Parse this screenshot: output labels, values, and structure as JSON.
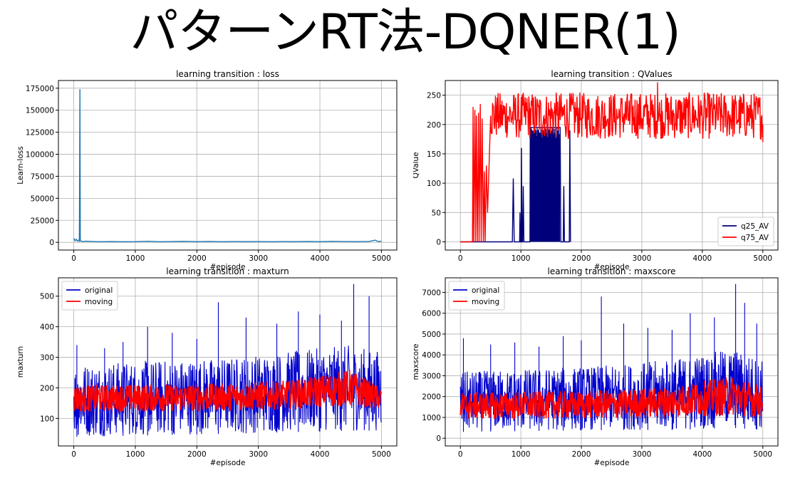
{
  "page": {
    "title": "パターンRT法-DQNER(1)"
  },
  "colors": {
    "blue": "#0000cc",
    "red": "#ff0000",
    "navy": "#00007a",
    "loss_line": "#1f77b4",
    "grid": "#b0b0b0"
  },
  "chart_data": [
    {
      "id": "loss",
      "type": "line",
      "title": "learning transition : loss",
      "xlabel": "#episode",
      "ylabel": "Learn-loss",
      "xlim": [
        -250,
        5250
      ],
      "ylim": [
        -8750,
        183750
      ],
      "xticks": [
        0,
        1000,
        2000,
        3000,
        4000,
        5000
      ],
      "yticks": [
        0,
        25000,
        50000,
        75000,
        100000,
        125000,
        150000,
        175000
      ],
      "grid": true,
      "legend": null,
      "series": [
        {
          "color": "#1f77b4",
          "points": [
            [
              0,
              4500
            ],
            [
              20,
              1800
            ],
            [
              40,
              3500
            ],
            [
              60,
              1200
            ],
            [
              80,
              2600
            ],
            [
              90,
              1500
            ],
            [
              100,
              174000
            ],
            [
              105,
              4000
            ],
            [
              110,
              1500
            ],
            [
              150,
              900
            ],
            [
              200,
              1300
            ],
            [
              400,
              700
            ],
            [
              600,
              900
            ],
            [
              800,
              700
            ],
            [
              1000,
              800
            ],
            [
              1200,
              1200
            ],
            [
              1400,
              700
            ],
            [
              1600,
              900
            ],
            [
              1800,
              1100
            ],
            [
              2000,
              800
            ],
            [
              2200,
              1000
            ],
            [
              2400,
              700
            ],
            [
              2600,
              900
            ],
            [
              2800,
              800
            ],
            [
              3000,
              900
            ],
            [
              3200,
              700
            ],
            [
              3400,
              900
            ],
            [
              3600,
              800
            ],
            [
              3800,
              1000
            ],
            [
              4000,
              800
            ],
            [
              4200,
              1100
            ],
            [
              4400,
              900
            ],
            [
              4600,
              800
            ],
            [
              4800,
              1000
            ],
            [
              4900,
              2500
            ],
            [
              4950,
              800
            ],
            [
              5000,
              1300
            ]
          ]
        }
      ]
    },
    {
      "id": "qvalues",
      "type": "line",
      "title": "learning transition : QValues",
      "xlabel": "#episode",
      "ylabel": "QValue",
      "xlim": [
        -250,
        5250
      ],
      "ylim": [
        -14,
        275
      ],
      "xticks": [
        0,
        1000,
        2000,
        3000,
        4000,
        5000
      ],
      "yticks": [
        0,
        50,
        100,
        150,
        200,
        250
      ],
      "grid": true,
      "legend": "lower-right",
      "series": [
        {
          "name": "q25_AV",
          "color": "#00007a",
          "points": [
            [
              0,
              0
            ],
            [
              860,
              0
            ],
            [
              875,
              108
            ],
            [
              890,
              0
            ],
            [
              980,
              0
            ],
            [
              985,
              50
            ],
            [
              995,
              0
            ],
            [
              1005,
              0
            ],
            [
              1010,
              160
            ],
            [
              1020,
              0
            ],
            [
              1030,
              0
            ],
            [
              1040,
              95
            ],
            [
              1050,
              0
            ],
            [
              1150,
              0
            ],
            [
              1155,
              195
            ],
            [
              1650,
              195
            ],
            [
              1660,
              0
            ],
            [
              1700,
              0
            ],
            [
              1710,
              95
            ],
            [
              1720,
              0
            ],
            [
              1800,
              0
            ],
            [
              1810,
              190
            ],
            [
              1820,
              0
            ]
          ],
          "dense_band": [
            1160,
            1640,
            0,
            195
          ]
        },
        {
          "name": "q75_AV",
          "color": "#ff0000",
          "points": [
            [
              0,
              0
            ],
            [
              200,
              0
            ],
            [
              210,
              230
            ],
            [
              220,
              0
            ],
            [
              240,
              225
            ],
            [
              250,
              0
            ],
            [
              265,
              215
            ],
            [
              280,
              0
            ],
            [
              300,
              220
            ],
            [
              310,
              0
            ],
            [
              330,
              235
            ],
            [
              345,
              0
            ],
            [
              360,
              210
            ],
            [
              380,
              0
            ],
            [
              395,
              120
            ],
            [
              410,
              0
            ],
            [
              430,
              130
            ],
            [
              450,
              50
            ],
            [
              500,
              215
            ],
            [
              600,
              230
            ],
            [
              800,
              210
            ],
            [
              1000,
              220
            ],
            [
              1100,
              245
            ],
            [
              1200,
              200
            ],
            [
              1400,
              210
            ],
            [
              1600,
              215
            ],
            [
              1800,
              205
            ],
            [
              2000,
              210
            ],
            [
              2200,
              195
            ],
            [
              2400,
              215
            ],
            [
              2600,
              210
            ],
            [
              2800,
              200
            ],
            [
              3000,
              210
            ],
            [
              3200,
              205
            ],
            [
              3260,
              272
            ],
            [
              3300,
              205
            ],
            [
              3600,
              210
            ],
            [
              4000,
              205
            ],
            [
              4400,
              215
            ],
            [
              4800,
              210
            ],
            [
              5000,
              200
            ],
            [
              5000,
              170
            ]
          ],
          "noise": [
            175,
            255
          ]
        }
      ]
    },
    {
      "id": "maxturn",
      "type": "line",
      "title": "learning transition : maxturn",
      "xlabel": "#episode",
      "ylabel": "maxturn",
      "xlim": [
        -250,
        5250
      ],
      "ylim": [
        10,
        560
      ],
      "xticks": [
        0,
        1000,
        2000,
        3000,
        4000,
        5000
      ],
      "yticks": [
        100,
        200,
        300,
        400,
        500
      ],
      "grid": true,
      "legend": "upper-left",
      "series": [
        {
          "name": "original",
          "color": "#0000cc",
          "band": [
            [
              0,
              40,
              280
            ],
            [
              2500,
              50,
              300
            ],
            [
              3500,
              55,
              320
            ],
            [
              4500,
              60,
              340
            ],
            [
              5000,
              60,
              320
            ]
          ],
          "spikes": [
            [
              50,
              340
            ],
            [
              500,
              330
            ],
            [
              800,
              350
            ],
            [
              1200,
              400
            ],
            [
              1600,
              380
            ],
            [
              2000,
              360
            ],
            [
              2350,
              480
            ],
            [
              2800,
              430
            ],
            [
              3300,
              410
            ],
            [
              3650,
              450
            ],
            [
              4000,
              440
            ],
            [
              4350,
              420
            ],
            [
              4550,
              540
            ],
            [
              4800,
              500
            ]
          ]
        },
        {
          "name": "moving",
          "color": "#ff0000",
          "band": [
            [
              0,
              120,
              210
            ],
            [
              2500,
              125,
              215
            ],
            [
              3500,
              130,
              225
            ],
            [
              4500,
              140,
              260
            ],
            [
              5000,
              130,
              200
            ]
          ]
        }
      ]
    },
    {
      "id": "maxscore",
      "type": "line",
      "title": "learning transition : maxscore",
      "xlabel": "#episode",
      "ylabel": "maxscore",
      "xlim": [
        -250,
        5250
      ],
      "ylim": [
        -370,
        7700
      ],
      "xticks": [
        0,
        1000,
        2000,
        3000,
        4000,
        5000
      ],
      "yticks": [
        0,
        1000,
        2000,
        3000,
        4000,
        5000,
        6000,
        7000
      ],
      "grid": true,
      "legend": "upper-left",
      "series": [
        {
          "name": "original",
          "color": "#0000cc",
          "band": [
            [
              0,
              300,
              3200
            ],
            [
              2500,
              400,
              3500
            ],
            [
              3500,
              400,
              3800
            ],
            [
              4500,
              500,
              4300
            ],
            [
              5000,
              400,
              3800
            ]
          ],
          "spikes": [
            [
              50,
              4800
            ],
            [
              500,
              4500
            ],
            [
              900,
              4600
            ],
            [
              1300,
              4400
            ],
            [
              1700,
              4900
            ],
            [
              2000,
              4700
            ],
            [
              2330,
              6800
            ],
            [
              2700,
              5500
            ],
            [
              3100,
              5300
            ],
            [
              3500,
              5200
            ],
            [
              3800,
              6000
            ],
            [
              4200,
              5800
            ],
            [
              4550,
              7400
            ],
            [
              4700,
              6500
            ],
            [
              4900,
              5500
            ]
          ]
        },
        {
          "name": "moving",
          "color": "#ff0000",
          "band": [
            [
              0,
              900,
              2200
            ],
            [
              2500,
              950,
              2300
            ],
            [
              3500,
              1000,
              2500
            ],
            [
              4500,
              1100,
              3000
            ],
            [
              5000,
              1000,
              2500
            ]
          ]
        }
      ]
    }
  ]
}
